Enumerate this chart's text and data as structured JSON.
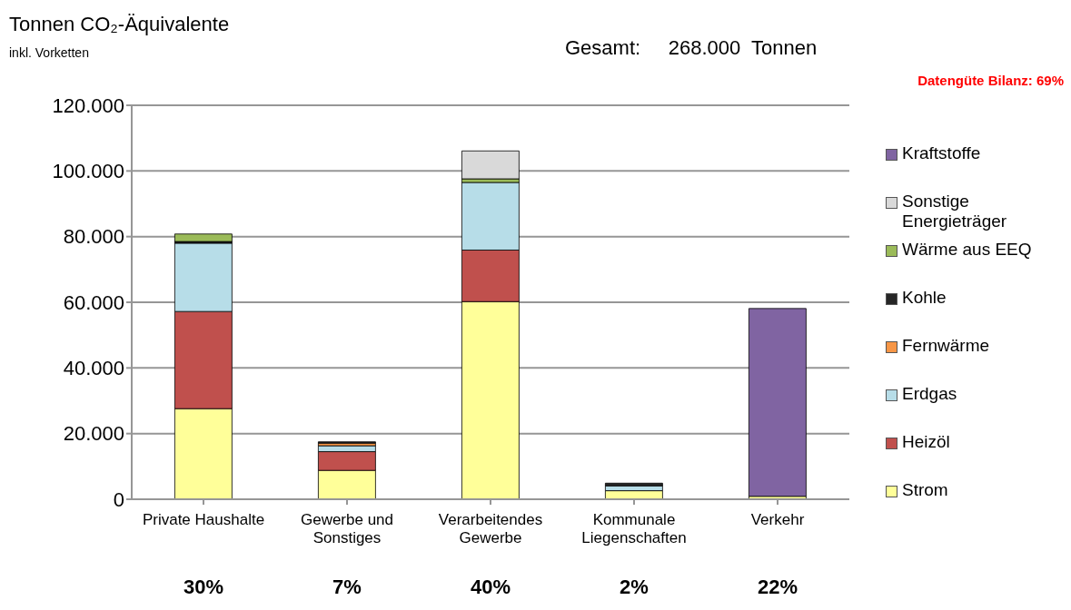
{
  "chart_data": {
    "type": "bar",
    "title": "Tonnen CO₂-Äquivalente",
    "subtitle": "inkl. Vorketten",
    "categories": [
      "Private Haushalte",
      "Gewerbe und Sonstiges",
      "Verarbeitendes Gewerbe",
      "Kommunale Liegenschaften",
      "Verkehr"
    ],
    "stacked": true,
    "series": [
      {
        "name": "Strom",
        "color": "#ffff99",
        "values": [
          27600,
          8800,
          60200,
          2600,
          900
        ]
      },
      {
        "name": "Heizöl",
        "color": "#c0504d",
        "values": [
          29600,
          5700,
          15700,
          null,
          null
        ]
      },
      {
        "name": "Erdgas",
        "color": "#b7dde8",
        "values": [
          20800,
          1800,
          20600,
          1500,
          null
        ]
      },
      {
        "name": "Fernwärme",
        "color": "#f79646",
        "values": [
          null,
          800,
          null,
          null,
          null
        ]
      },
      {
        "name": "Kohle",
        "color": "#262626",
        "values": [
          500,
          400,
          null,
          800,
          null
        ]
      },
      {
        "name": "Wärme aus EEQ",
        "color": "#9bbb59",
        "values": [
          2300,
          null,
          1100,
          null,
          null
        ]
      },
      {
        "name": "Sonstige Energieträger",
        "color": "#d9d9d9",
        "values": [
          null,
          null,
          8500,
          null,
          null
        ]
      },
      {
        "name": "Kraftstoffe",
        "color": "#8064a2",
        "values": [
          null,
          null,
          null,
          null,
          57200
        ]
      }
    ],
    "ylim": [
      0,
      120000
    ],
    "yticks": [
      {
        "value": 0,
        "label": "0"
      },
      {
        "value": 20000,
        "label": "20.000"
      },
      {
        "value": 40000,
        "label": "40.000"
      },
      {
        "value": 60000,
        "label": "60.000"
      },
      {
        "value": 80000,
        "label": "80.000"
      },
      {
        "value": 100000,
        "label": "100.000"
      },
      {
        "value": 120000,
        "label": "120.000"
      }
    ],
    "grid": "y",
    "legend": "right",
    "annotations": [
      "Gesamt:     268.000  Tonnen",
      "Datengüte Bilanz: 69%",
      "30%",
      "7%",
      "40%",
      "2%",
      "22%"
    ]
  }
}
